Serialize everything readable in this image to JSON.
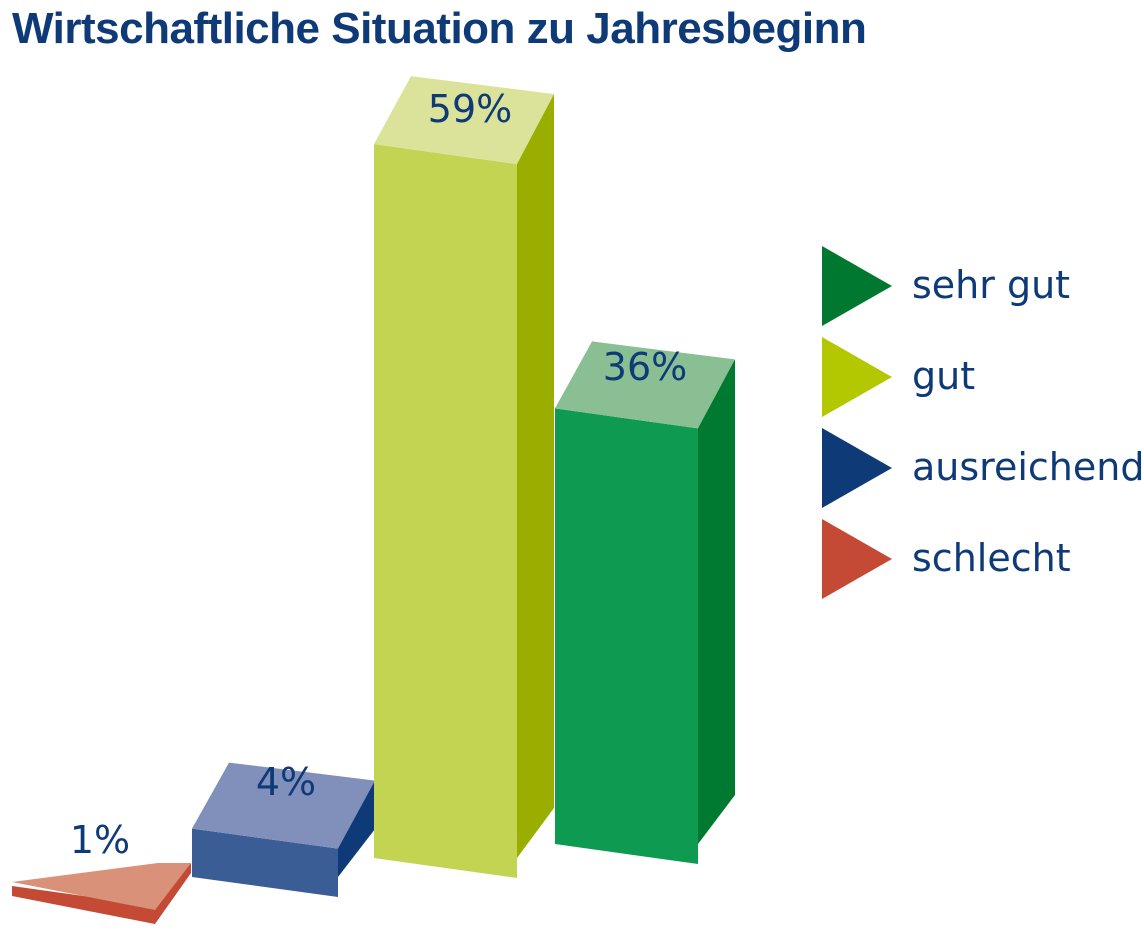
{
  "title": "Wirtschaftliche Situation zu Jahresbeginn",
  "chart_data": {
    "type": "bar",
    "title": "Wirtschaftliche Situation zu Jahresbeginn",
    "categories": [
      "schlecht",
      "ausreichend",
      "gut",
      "sehr gut"
    ],
    "values": [
      1,
      4,
      59,
      36
    ],
    "value_labels": [
      "1%",
      "4%",
      "59%",
      "36%"
    ],
    "unit": "%",
    "ylim": [
      0,
      60
    ],
    "grid": false,
    "legend_position": "right",
    "legend": [
      {
        "label": "sehr gut",
        "color": "#00782f"
      },
      {
        "label": "gut",
        "color": "#b3c800"
      },
      {
        "label": "ausreichend",
        "color": "#0f3a78"
      },
      {
        "label": "schlecht",
        "color": "#c44a36"
      }
    ],
    "colors": {
      "schlecht": {
        "top": "#d9917a",
        "front": "#c44a36"
      },
      "ausreichend": {
        "top": "#8090bb",
        "front": "#3b5d95",
        "side": "#0f3a78"
      },
      "gut": {
        "top": "#dbe39a",
        "front": "#c3d352",
        "side": "#9aae00"
      },
      "sehr gut": {
        "top": "#89bf92",
        "front": "#0f9a52",
        "side": "#007a30"
      }
    }
  }
}
